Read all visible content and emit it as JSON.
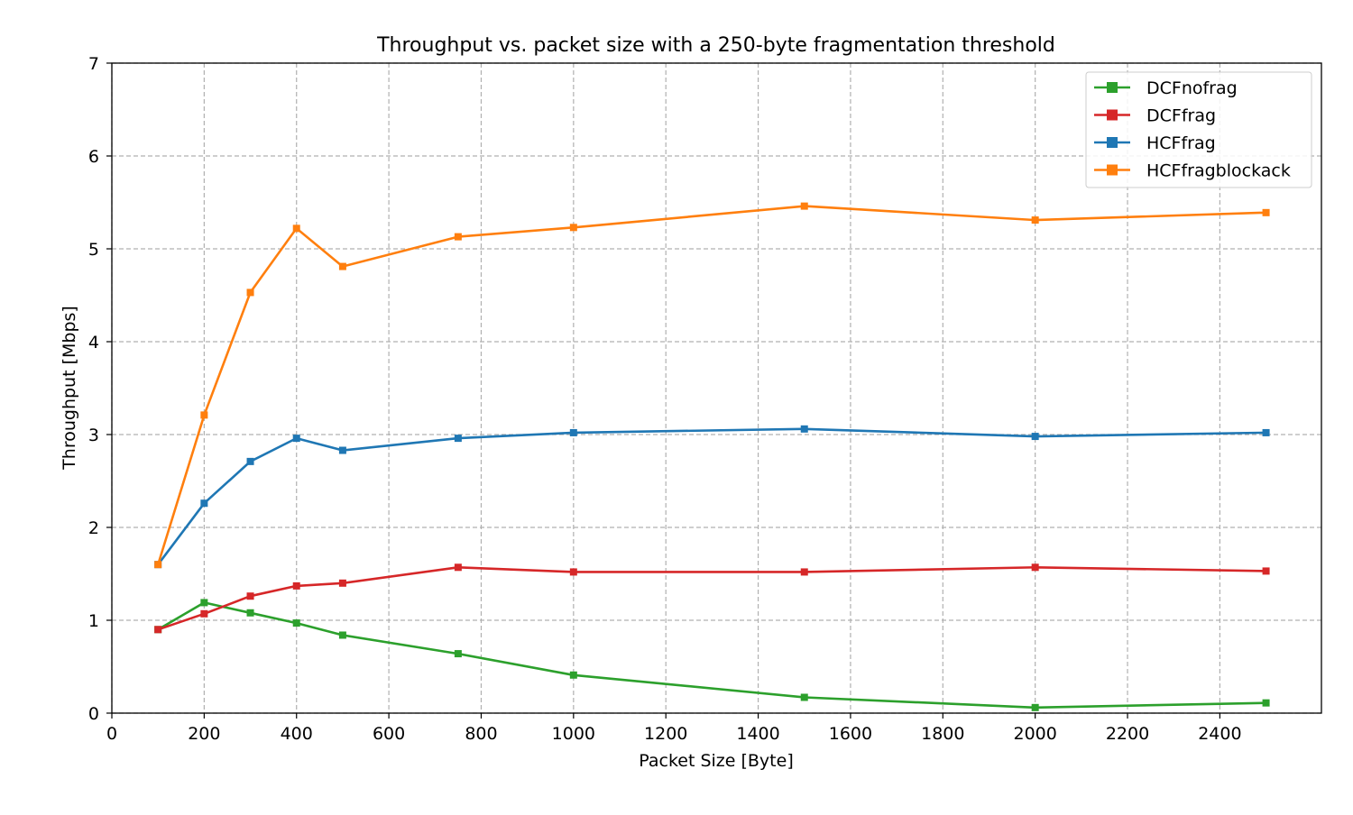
{
  "chart_data": {
    "type": "line",
    "title": "Throughput vs. packet size with a 250-byte fragmentation threshold",
    "xlabel": "Packet Size [Byte]",
    "ylabel": "Throughput [Mbps]",
    "xlim": [
      0,
      2620
    ],
    "ylim": [
      0,
      7
    ],
    "xticks": [
      0,
      200,
      400,
      600,
      800,
      1000,
      1200,
      1400,
      1600,
      1800,
      2000,
      2200,
      2400
    ],
    "yticks": [
      0,
      1,
      2,
      3,
      4,
      5,
      6,
      7
    ],
    "grid": true,
    "legend_position": "top-right",
    "x": [
      100,
      200,
      300,
      400,
      500,
      750,
      1000,
      1500,
      2000,
      2500
    ],
    "series": [
      {
        "name": "DCFnofrag",
        "color": "#2ca02c",
        "values": [
          0.9,
          1.19,
          1.08,
          0.97,
          0.84,
          0.64,
          0.41,
          0.17,
          0.06,
          0.11
        ]
      },
      {
        "name": "DCFfrag",
        "color": "#d62728",
        "values": [
          0.9,
          1.07,
          1.26,
          1.37,
          1.4,
          1.57,
          1.52,
          1.52,
          1.57,
          1.53
        ]
      },
      {
        "name": "HCFfrag",
        "color": "#1f77b4",
        "values": [
          1.6,
          2.26,
          2.71,
          2.96,
          2.83,
          2.96,
          3.02,
          3.06,
          2.98,
          3.02
        ]
      },
      {
        "name": "HCFfragblockack",
        "color": "#ff7f0e",
        "values": [
          1.6,
          3.21,
          4.53,
          5.22,
          4.81,
          5.13,
          5.23,
          5.46,
          5.31,
          5.39
        ]
      }
    ]
  }
}
